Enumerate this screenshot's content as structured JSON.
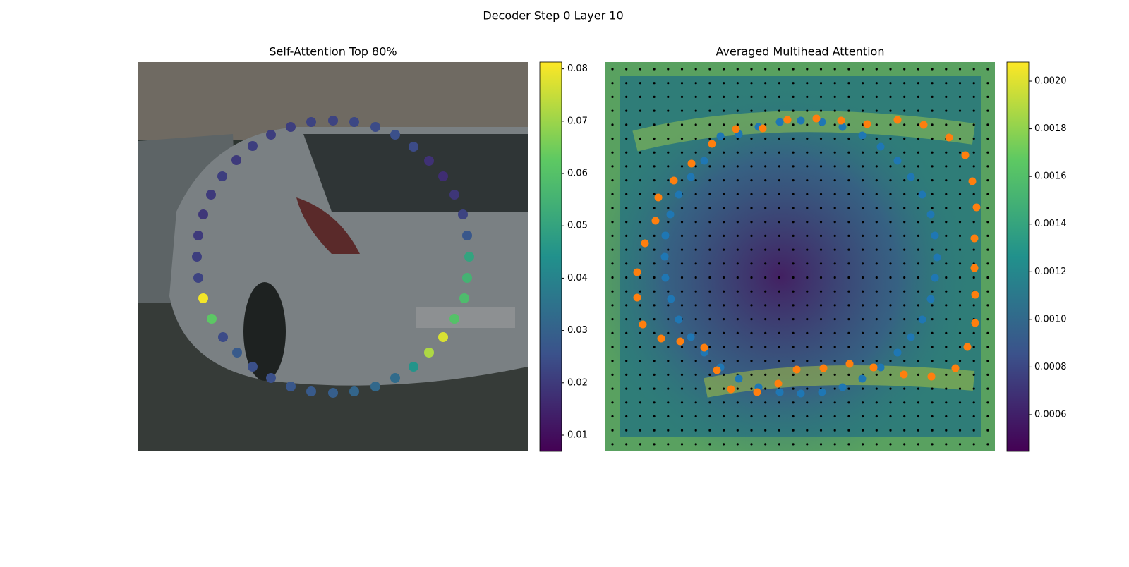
{
  "title": "Decoder Step 0 Layer 10",
  "chart_data": [
    {
      "type": "scatter",
      "title": "Self-Attention Top 80%",
      "xlim": [
        0,
        552
      ],
      "ylim": [
        552,
        0
      ],
      "x": [
        216,
        245,
        276,
        306,
        336,
        364,
        390,
        412,
        432,
        448,
        460,
        466,
        469,
        466,
        462,
        448,
        432,
        412,
        390,
        364,
        336,
        306,
        276,
        245,
        216,
        188,
        162,
        140,
        120,
        104,
        92,
        85,
        83,
        85,
        92,
        103,
        119,
        139,
        162,
        188
      ],
      "y": [
        92,
        85,
        83,
        85,
        92,
        103,
        120,
        140,
        162,
        188,
        216,
        246,
        276,
        306,
        335,
        364,
        390,
        412,
        432,
        448,
        460,
        467,
        469,
        467,
        460,
        448,
        432,
        412,
        390,
        364,
        335,
        306,
        276,
        246,
        216,
        188,
        162,
        139,
        119,
        103
      ],
      "values": [
        0.021,
        0.022,
        0.022,
        0.023,
        0.024,
        0.025,
        0.024,
        0.018,
        0.017,
        0.019,
        0.022,
        0.027,
        0.05,
        0.055,
        0.058,
        0.06,
        0.077,
        0.072,
        0.045,
        0.033,
        0.032,
        0.031,
        0.029,
        0.028,
        0.027,
        0.025,
        0.025,
        0.028,
        0.024,
        0.062,
        0.08,
        0.022,
        0.021,
        0.02,
        0.019,
        0.02,
        0.021,
        0.02,
        0.021,
        0.021
      ],
      "colorbar": {
        "clim": [
          0.0069,
          0.0813
        ],
        "ticks": [
          0.01,
          0.02,
          0.03,
          0.04,
          0.05,
          0.06,
          0.07,
          0.08
        ]
      }
    },
    {
      "type": "scatter",
      "title": "Averaged Multihead Attention",
      "xlim": [
        0,
        552
      ],
      "ylim": [
        552,
        0
      ],
      "series": [
        {
          "color": "#1f77b4",
          "x": [
            163,
            189,
            217,
            247,
            277,
            307,
            336,
            364,
            390,
            414,
            433,
            449,
            461,
            467,
            470,
            467,
            461,
            449,
            433,
            414,
            390,
            364,
            336,
            307,
            277,
            247,
            217,
            189,
            163,
            140,
            121,
            104,
            93,
            85,
            84,
            85,
            92,
            104,
            121,
            140
          ],
          "y": [
            105,
            102,
            92,
            85,
            83,
            85,
            92,
            104,
            120,
            140,
            163,
            188,
            216,
            246,
            277,
            306,
            336,
            365,
            390,
            412,
            433,
            449,
            461,
            468,
            470,
            468,
            461,
            449,
            433,
            412,
            390,
            365,
            336,
            306,
            276,
            246,
            216,
            188,
            163,
            140
          ]
        },
        {
          "color": "#ff7f0e",
          "x": [
            185,
            223,
            258,
            299,
            334,
            371,
            414,
            451,
            487,
            510,
            520,
            526,
            523,
            523,
            524,
            524,
            513,
            496,
            462,
            423,
            380,
            346,
            309,
            271,
            245,
            215,
            178,
            158,
            140,
            106,
            79,
            53,
            45,
            45,
            56,
            71,
            75,
            97,
            122,
            151
          ],
          "y": [
            95,
            94,
            82,
            80,
            83,
            88,
            82,
            89,
            107,
            132,
            169,
            206,
            250,
            292,
            330,
            370,
            404,
            434,
            446,
            443,
            433,
            428,
            434,
            436,
            456,
            468,
            464,
            437,
            405,
            396,
            392,
            372,
            334,
            298,
            257,
            225,
            192,
            168,
            144,
            116
          ]
        }
      ],
      "colorbar": {
        "clim": [
          0.000446,
          0.00208
        ],
        "ticks": [
          {
            "value": 0.0006,
            "label": "0.0006"
          },
          {
            "value": 0.0008,
            "label": "0.0008"
          },
          {
            "value": 0.001,
            "label": "0.0010"
          },
          {
            "value": 0.0012,
            "label": "0.0012"
          },
          {
            "value": 0.0014,
            "label": "0.0014"
          },
          {
            "value": 0.0016,
            "label": "0.0016"
          },
          {
            "value": 0.0018,
            "label": "0.0018"
          },
          {
            "value": 0.002,
            "label": "0.0020"
          }
        ]
      }
    }
  ]
}
